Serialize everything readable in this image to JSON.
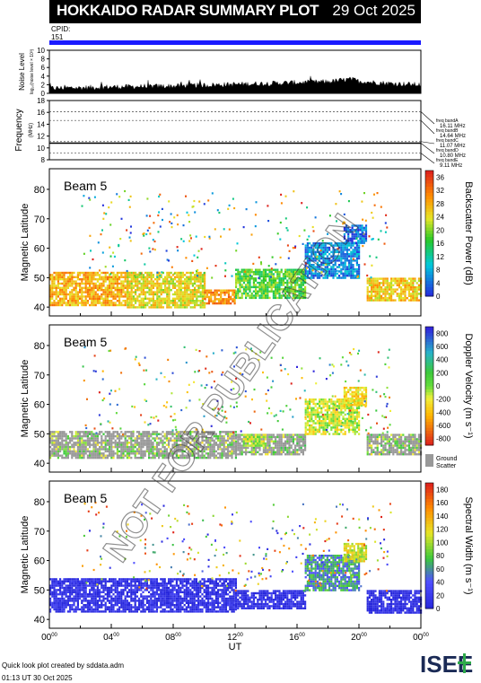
{
  "header": {
    "title": "HOKKAIDO RADAR SUMMARY PLOT",
    "date": "29 Oct 2025"
  },
  "cpid": {
    "label": "CPID:",
    "value": "151"
  },
  "footer": {
    "credit": "Quick look plot created by sddata.adm",
    "timestamp": "01:13 UT 30 Oct 2025"
  },
  "logo": {
    "text": "ISEE"
  },
  "watermark": "NOT FOR PUBLICATION",
  "colors": {
    "cpid_bar": "#1a1aff",
    "ground_scatter": "#999999"
  },
  "chart_data": [
    {
      "type": "area",
      "ylabel": "Noise Level",
      "ylabel_sub": "log₁₀(noise level × 10³)",
      "ylim": [
        0,
        10
      ],
      "yticks": [
        0,
        2,
        4,
        6,
        8,
        10
      ],
      "x_hours": [
        0,
        2,
        4,
        6,
        8,
        10,
        12,
        14,
        16,
        18,
        19.5,
        20,
        22,
        24
      ],
      "values": [
        1.2,
        1.3,
        1.5,
        1.6,
        1.7,
        1.9,
        2.1,
        2.3,
        2.5,
        2.7,
        3.3,
        2.8,
        2.3,
        2.0
      ]
    },
    {
      "type": "line",
      "ylabel": "Frequency",
      "yunit": "(MHz)",
      "ylim": [
        8,
        18
      ],
      "yticks": [
        8,
        10,
        12,
        14,
        16,
        18
      ],
      "band_lines": [
        16.11,
        14.64,
        11.07,
        10.8,
        9.11
      ],
      "band_labels": [
        {
          "label": "freq bandA",
          "value": "16.11 MHz",
          "f": 16.11
        },
        {
          "label": "freq bandB",
          "value": "14.64 MHz",
          "f": 14.64
        },
        {
          "label": "freq bandC",
          "value": "11.07 MHz",
          "f": 11.07
        },
        {
          "label": "freq bandD",
          "value": "10.80 MHz",
          "f": 10.8
        },
        {
          "label": "freq bandE",
          "value": "9.11 MHz",
          "f": 9.11
        }
      ],
      "operating_frequency": 10.8
    },
    {
      "type": "heatmap",
      "label": "Beam  5",
      "ylabel": "Magnetic Latitude",
      "ylim": [
        37,
        87
      ],
      "yticks": [
        40,
        50,
        60,
        70,
        80
      ],
      "colorbar_label": "Backscatter Power (dB)",
      "colorbar_ticks": [
        0,
        4,
        8,
        12,
        16,
        20,
        24,
        28,
        32,
        36
      ],
      "colorbar_range": [
        0,
        38
      ],
      "regions": [
        {
          "t": [
            0,
            5
          ],
          "lat": [
            41,
            52
          ],
          "v": 28
        },
        {
          "t": [
            5,
            10
          ],
          "lat": [
            40,
            52
          ],
          "v": 24
        },
        {
          "t": [
            10,
            12
          ],
          "lat": [
            41,
            46
          ],
          "v": 30
        },
        {
          "t": [
            12,
            16.5
          ],
          "lat": [
            43,
            53
          ],
          "v": 18
        },
        {
          "t": [
            16.5,
            20
          ],
          "lat": [
            50,
            62
          ],
          "v": 6
        },
        {
          "t": [
            19,
            20.5
          ],
          "lat": [
            62,
            68
          ],
          "v": 4
        },
        {
          "t": [
            20.5,
            24
          ],
          "lat": [
            42,
            50
          ],
          "v": 26
        }
      ]
    },
    {
      "type": "heatmap",
      "label": "Beam  5",
      "ylabel": "Magnetic Latitude",
      "ylim": [
        37,
        87
      ],
      "yticks": [
        40,
        50,
        60,
        70,
        80
      ],
      "colorbar_label": "Doppler Velocity (m s⁻¹)",
      "colorbar_ticks": [
        -800,
        -600,
        -400,
        -200,
        0,
        200,
        400,
        600,
        800
      ],
      "colorbar_range": [
        -900,
        900
      ],
      "ground_scatter_label": "Ground Scatter",
      "regions": [
        {
          "t": [
            0,
            12
          ],
          "lat": [
            42,
            51
          ],
          "v": "gs"
        },
        {
          "t": [
            12,
            16.5
          ],
          "lat": [
            43,
            50
          ],
          "v": "gs"
        },
        {
          "t": [
            12.5,
            14
          ],
          "lat": [
            46,
            50
          ],
          "v": -100
        },
        {
          "t": [
            16.5,
            20
          ],
          "lat": [
            50,
            62
          ],
          "v": -150
        },
        {
          "t": [
            19,
            20.5
          ],
          "lat": [
            60,
            66
          ],
          "v": -300
        },
        {
          "t": [
            20.5,
            24
          ],
          "lat": [
            43,
            50
          ],
          "v": "gs"
        }
      ]
    },
    {
      "type": "heatmap",
      "label": "Beam  5",
      "ylabel": "Magnetic Latitude",
      "ylim": [
        37,
        87
      ],
      "yticks": [
        40,
        50,
        60,
        70,
        80
      ],
      "colorbar_label": "Spectral Width (m s⁻¹)",
      "colorbar_ticks": [
        0,
        20,
        40,
        60,
        80,
        100,
        120,
        140,
        160,
        180
      ],
      "colorbar_range": [
        0,
        190
      ],
      "regions": [
        {
          "t": [
            0,
            12
          ],
          "lat": [
            43,
            54
          ],
          "v": 5
        },
        {
          "t": [
            12,
            16.5
          ],
          "lat": [
            44,
            50
          ],
          "v": 5
        },
        {
          "t": [
            16.5,
            20
          ],
          "lat": [
            50,
            62
          ],
          "v": 60
        },
        {
          "t": [
            19,
            20.5
          ],
          "lat": [
            60,
            66
          ],
          "v": 110
        },
        {
          "t": [
            20.5,
            24
          ],
          "lat": [
            42,
            50
          ],
          "v": 5
        }
      ]
    }
  ],
  "xaxis": {
    "label": "UT",
    "ticks": [
      {
        "h": 0,
        "label": "00",
        "sup": "00"
      },
      {
        "h": 4,
        "label": "04",
        "sup": "00"
      },
      {
        "h": 8,
        "label": "08",
        "sup": "00"
      },
      {
        "h": 12,
        "label": "12",
        "sup": "00"
      },
      {
        "h": 16,
        "label": "16",
        "sup": "00"
      },
      {
        "h": 20,
        "label": "20",
        "sup": "00"
      },
      {
        "h": 24,
        "label": "00",
        "sup": "00"
      }
    ]
  }
}
